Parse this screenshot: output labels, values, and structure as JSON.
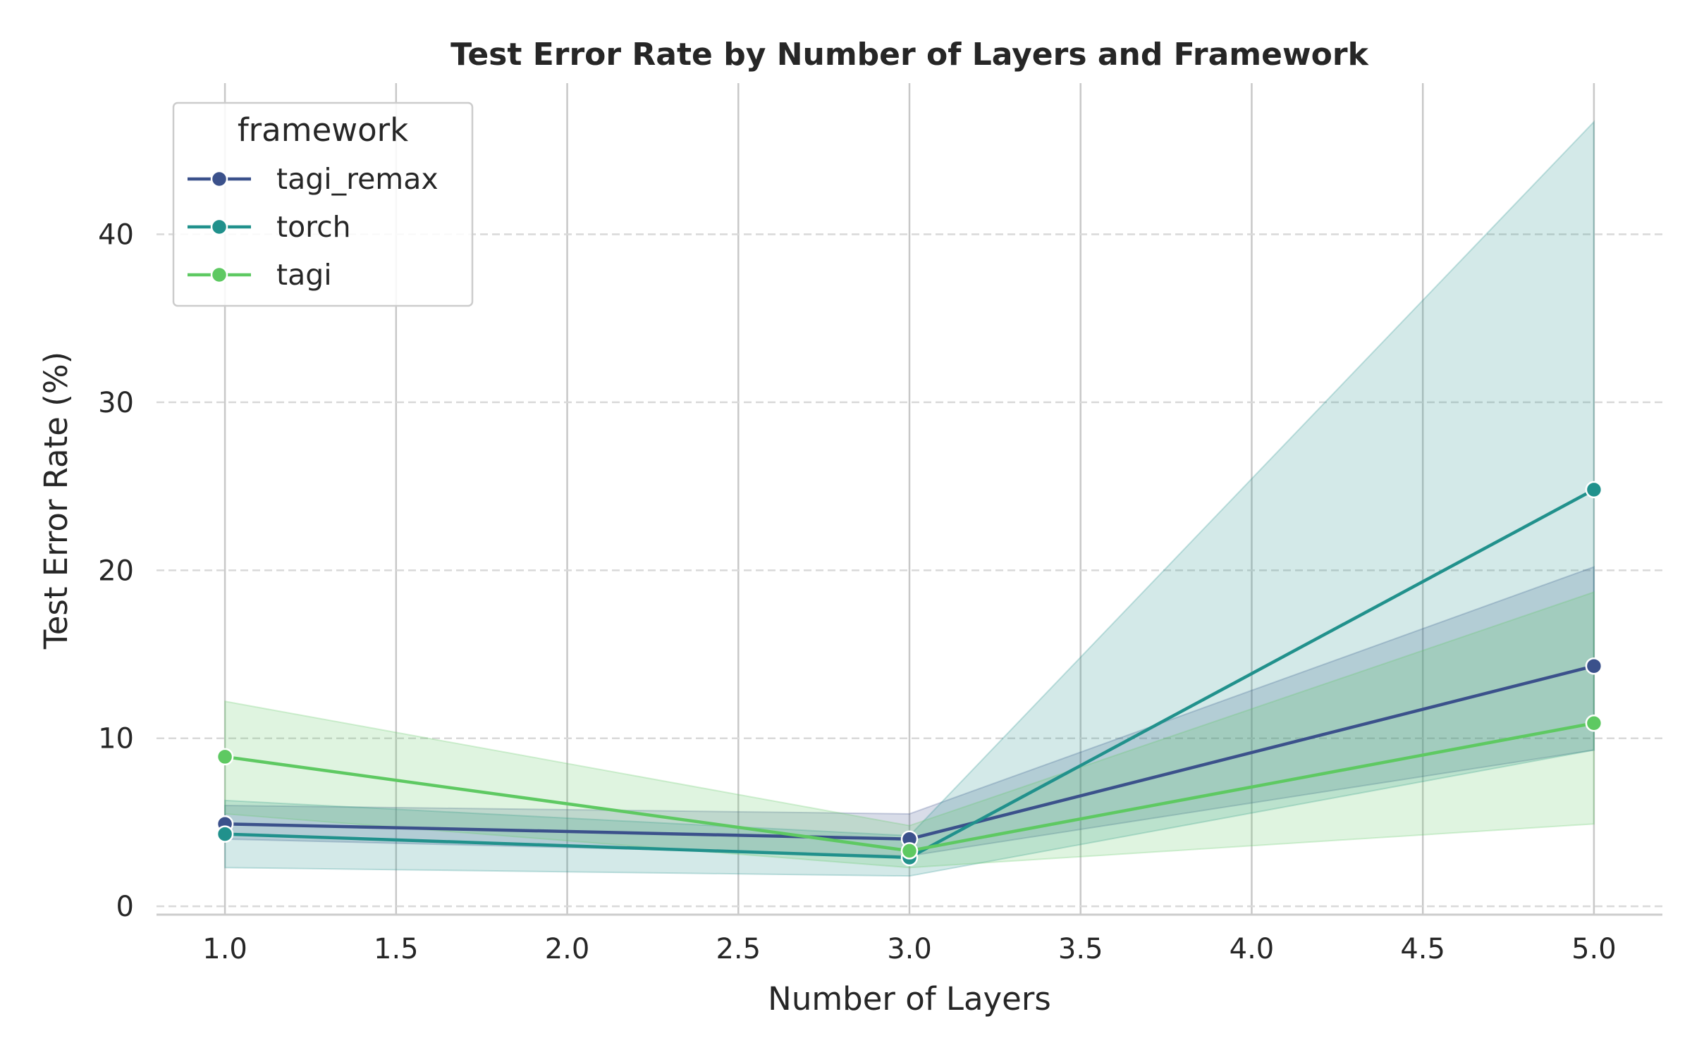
{
  "chart_data": {
    "type": "line",
    "title": "Test Error Rate by Number of Layers and Framework",
    "xlabel": "Number of Layers",
    "ylabel": "Test Error Rate (%)",
    "xlim": [
      0.8,
      5.2
    ],
    "ylim": [
      -0.5,
      49
    ],
    "xticks": [
      1.0,
      1.5,
      2.0,
      2.5,
      3.0,
      3.5,
      4.0,
      4.5,
      5.0
    ],
    "xtick_labels": [
      "1.0",
      "1.5",
      "2.0",
      "2.5",
      "3.0",
      "3.5",
      "4.0",
      "4.5",
      "5.0"
    ],
    "yticks": [
      0,
      10,
      20,
      30,
      40
    ],
    "ytick_labels": [
      "0",
      "10",
      "20",
      "30",
      "40"
    ],
    "grid": {
      "x": "solid",
      "y": "dashed"
    },
    "legend": {
      "title": "framework",
      "position": "top-left"
    },
    "x": [
      1,
      3,
      5
    ],
    "series": [
      {
        "name": "tagi_remax",
        "color": "#3b518b",
        "values": [
          4.9,
          4.0,
          14.3
        ],
        "ci_low": [
          4.0,
          3.0,
          9.3
        ],
        "ci_high": [
          6.0,
          5.5,
          20.2
        ]
      },
      {
        "name": "torch",
        "color": "#21918c",
        "values": [
          4.3,
          2.9,
          24.8
        ],
        "ci_low": [
          2.3,
          1.8,
          9.3
        ],
        "ci_high": [
          6.3,
          4.2,
          46.7
        ]
      },
      {
        "name": "tagi",
        "color": "#5ec962",
        "values": [
          8.9,
          3.3,
          10.9
        ],
        "ci_low": [
          5.5,
          2.3,
          4.9
        ],
        "ci_high": [
          12.2,
          4.8,
          18.7
        ]
      }
    ]
  }
}
